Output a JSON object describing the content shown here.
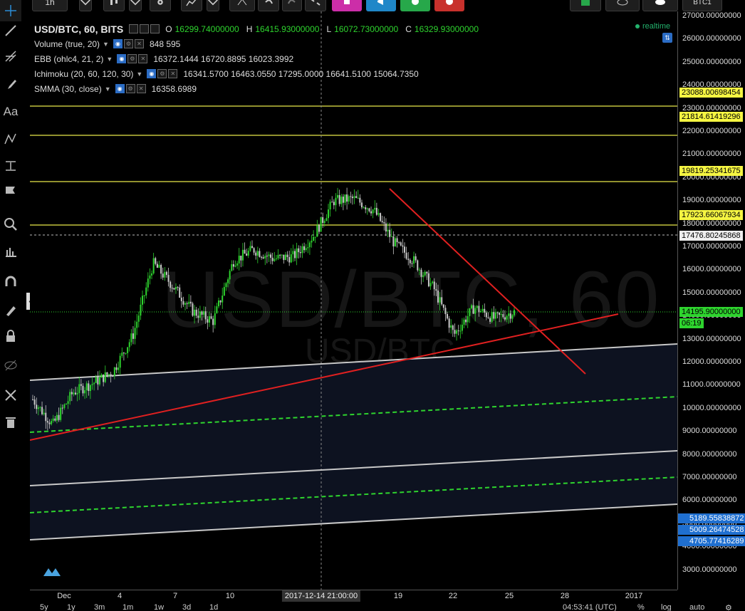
{
  "toolbar": {
    "interval": "1h",
    "symbol_right": "BTC1",
    "colors": {
      "purple": "#cc2ea8",
      "blue": "#1f87c8",
      "green": "#27a84a",
      "red": "#c8312c"
    }
  },
  "legend": {
    "title": "USD/BTC, 60, BITS",
    "o_label": "O",
    "o_val": "16299.74000000",
    "h_label": "H",
    "h_val": "16415.93000000",
    "l_label": "L",
    "l_val": "16072.73000000",
    "c_label": "C",
    "c_val": "16329.93000000",
    "indicators": [
      {
        "name": "Volume (true, 20)",
        "values": "848 595"
      },
      {
        "name": "EBB (ohlc4, 21, 2)",
        "values": "16372.1444  16720.8895  16023.3992"
      },
      {
        "name": "Ichimoku (20, 60, 120, 30)",
        "values": "16341.5700  16463.0550  17295.0000  16641.5100  15064.7350"
      },
      {
        "name": "SMMA (30, close)",
        "values": "16358.6989"
      }
    ],
    "realtime": "realtime"
  },
  "watermark": {
    "big": "USD/BTC, 60",
    "small": "USD/BTC"
  },
  "price_axis": {
    "labels": [
      "27000.00000000",
      "26000.00000000",
      "25000.00000000",
      "24000.00000000",
      "23000.00000000",
      "22000.00000000",
      "21000.00000000",
      "20000.00000000",
      "19000.00000000",
      "18000.00000000",
      "17000.00000000",
      "16000.00000000",
      "15000.00000000",
      "14000.00000000",
      "13000.00000000",
      "12000.00000000",
      "11000.00000000",
      "10000.00000000",
      "9000.00000000",
      "8000.00000000",
      "7000.00000000",
      "6000.00000000",
      "5000.00000000",
      "4000.00000000",
      "3000.00000000"
    ],
    "yellow_badges": [
      "23088.00698454",
      "21814.61419296",
      "19819.25341675",
      "17923.66067934"
    ],
    "white_badge": "17476.80245868",
    "last_price": "14195.90000000",
    "countdown": "06:19",
    "blue_badges": [
      "5189.55838872",
      "5009.26474528",
      "4705.77416289"
    ]
  },
  "time_axis": {
    "labels": [
      "Dec",
      "4",
      "7",
      "10",
      "19",
      "22",
      "25",
      "28",
      "2017"
    ],
    "crosshair": "2017-12-14 21:00:00"
  },
  "bottom_bar": {
    "ranges": [
      "5y",
      "1y",
      "3m",
      "1m",
      "1w",
      "3d",
      "1d"
    ],
    "clock": "04:53:41 (UTC)",
    "pct": "%",
    "log": "log",
    "auto": "auto"
  },
  "chart_data": {
    "type": "candlestick",
    "series_name": "USD/BTC",
    "ylim": [
      2500,
      27300
    ],
    "x_ticks": [
      "Dec",
      "4",
      "7",
      "10",
      "19",
      "22",
      "25",
      "28",
      "2017"
    ],
    "horizontal_levels": [
      23088.00698454,
      21814.61419296,
      19819.25341675,
      17923.66067934,
      17476.80245868
    ],
    "last_price": 14195.9,
    "approx_path": [
      [
        "Nov 30",
        10400
      ],
      [
        "Dec 1",
        9300
      ],
      [
        "Dec 2",
        10700
      ],
      [
        "Dec 4",
        11100
      ],
      [
        "Dec 5",
        11600
      ],
      [
        "Dec 6",
        13200
      ],
      [
        "Dec 7",
        16300
      ],
      [
        "Dec 8",
        15300
      ],
      [
        "Dec 9",
        14200
      ],
      [
        "Dec 10",
        13800
      ],
      [
        "Dec 11",
        16400
      ],
      [
        "Dec 12",
        16900
      ],
      [
        "Dec 13",
        16500
      ],
      [
        "Dec 14",
        16600
      ],
      [
        "Dec 15",
        17500
      ],
      [
        "Dec 16",
        19000
      ],
      [
        "Dec 17",
        19100
      ],
      [
        "Dec 18",
        18600
      ],
      [
        "Dec 19",
        17200
      ],
      [
        "Dec 20",
        16400
      ],
      [
        "Dec 21",
        15200
      ],
      [
        "Dec 22",
        13200
      ],
      [
        "Dec 23",
        14400
      ],
      [
        "Dec 24",
        13900
      ],
      [
        "Dec 25",
        14200
      ]
    ]
  }
}
